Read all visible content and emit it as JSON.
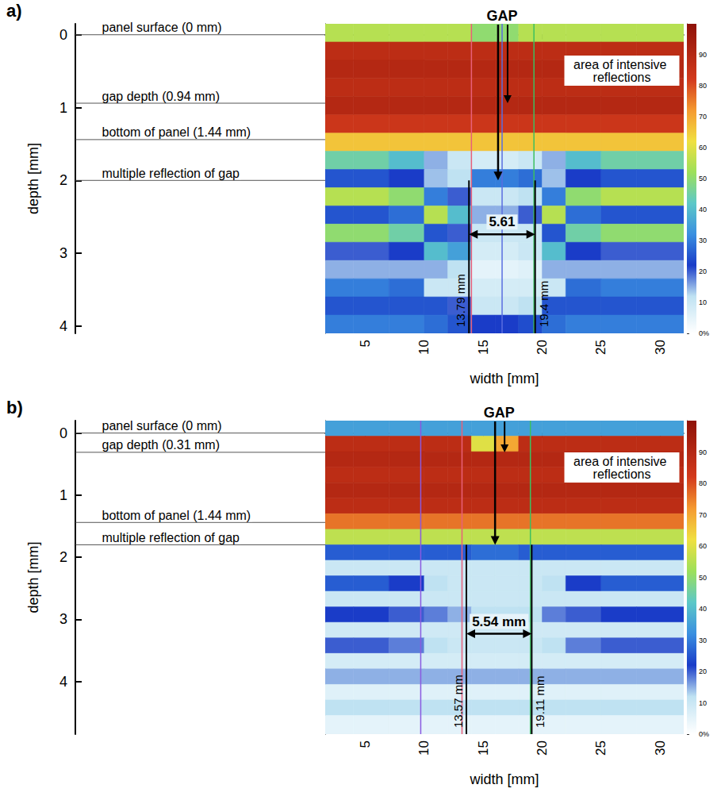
{
  "chart_data": [
    {
      "type": "heatmap",
      "panel": "a)",
      "x_label": "width [mm]",
      "y_label": "depth [mm]",
      "xlim": [
        1.6,
        32
      ],
      "xticks": [
        5,
        10,
        15,
        20,
        25,
        30
      ],
      "ylim": [
        -0.15,
        4.1
      ],
      "yticks": [
        0,
        1,
        2,
        3,
        4
      ],
      "x_edges": [
        1.6,
        4,
        7,
        10,
        12,
        14,
        16,
        18,
        20,
        22,
        25,
        28,
        32
      ],
      "depth_edges": [
        -0.15,
        0.1,
        0.35,
        0.6,
        0.85,
        1.1,
        1.35,
        1.6,
        1.85,
        2.1,
        2.35,
        2.6,
        2.85,
        3.1,
        3.35,
        3.6,
        3.85,
        4.1
      ],
      "amplitude": [
        [
          55,
          55,
          55,
          55,
          55,
          50,
          50,
          55,
          55,
          55,
          55,
          55
        ],
        [
          88,
          88,
          88,
          88,
          88,
          88,
          88,
          88,
          88,
          88,
          88,
          88
        ],
        [
          90,
          90,
          90,
          90,
          90,
          90,
          90,
          90,
          90,
          90,
          90,
          90
        ],
        [
          88,
          88,
          88,
          88,
          88,
          88,
          88,
          88,
          88,
          88,
          88,
          88
        ],
        [
          90,
          90,
          90,
          90,
          90,
          90,
          90,
          90,
          90,
          90,
          90,
          90
        ],
        [
          84,
          84,
          84,
          84,
          84,
          84,
          84,
          84,
          84,
          84,
          84,
          84
        ],
        [
          66,
          66,
          66,
          66,
          66,
          66,
          66,
          66,
          66,
          66,
          66,
          66
        ],
        [
          45,
          45,
          40,
          15,
          10,
          8,
          8,
          10,
          15,
          40,
          45,
          45
        ],
        [
          25,
          25,
          22,
          14,
          12,
          30,
          30,
          28,
          14,
          22,
          25,
          25
        ],
        [
          55,
          55,
          50,
          30,
          20,
          10,
          10,
          12,
          30,
          50,
          55,
          55
        ],
        [
          25,
          25,
          28,
          55,
          40,
          15,
          15,
          20,
          55,
          28,
          25,
          25
        ],
        [
          50,
          50,
          45,
          25,
          20,
          10,
          10,
          10,
          25,
          45,
          50,
          50
        ],
        [
          20,
          20,
          22,
          40,
          35,
          8,
          8,
          10,
          40,
          22,
          20,
          20
        ],
        [
          15,
          15,
          15,
          15,
          12,
          5,
          5,
          6,
          15,
          15,
          15,
          15
        ],
        [
          30,
          30,
          28,
          10,
          10,
          8,
          8,
          8,
          10,
          28,
          30,
          30
        ],
        [
          25,
          25,
          25,
          25,
          20,
          10,
          10,
          12,
          25,
          25,
          25,
          25
        ],
        [
          30,
          30,
          30,
          28,
          25,
          22,
          22,
          24,
          28,
          30,
          30,
          30
        ]
      ],
      "colorbar": {
        "range": [
          0,
          100
        ],
        "ticks": [
          {
            "value": 0,
            "label": "0%"
          },
          10,
          20,
          30,
          40,
          50,
          60,
          70,
          80,
          90
        ]
      },
      "depth_markers": [
        {
          "label": "panel surface (0 mm)",
          "depth": 0
        },
        {
          "label": "gap depth (0.94 mm)",
          "depth": 0.94
        },
        {
          "label": "bottom of panel (1.44 mm)",
          "depth": 1.44
        },
        {
          "label": "multiple reflection of gap",
          "depth": 2.0
        }
      ],
      "gap": {
        "label": "GAP",
        "edges": [
          {
            "value": 13.79,
            "label": "13.79 mm"
          },
          {
            "value": 19.4,
            "label": "19.4 mm"
          }
        ],
        "width": {
          "value": 5.61,
          "label": "5.61"
        }
      },
      "cursors": [
        {
          "x": 14.0,
          "color": "#e8607a"
        },
        {
          "x": 16.6,
          "color": "#5a6de0"
        },
        {
          "x": 19.3,
          "color": "#3cc060"
        }
      ],
      "annotation": "area of intensive reflections"
    },
    {
      "type": "heatmap",
      "panel": "b)",
      "x_label": "width [mm]",
      "y_label": "depth [mm]",
      "xlim": [
        1.6,
        32
      ],
      "xticks": [
        5,
        10,
        15,
        20,
        25,
        30
      ],
      "ylim": [
        -0.2,
        4.85
      ],
      "yticks": [
        0,
        1,
        2,
        3,
        4
      ],
      "x_edges": [
        1.6,
        4,
        7,
        10,
        12,
        14,
        16,
        18,
        20,
        22,
        25,
        28,
        32
      ],
      "depth_edges": [
        -0.2,
        0.05,
        0.3,
        0.55,
        0.8,
        1.05,
        1.3,
        1.55,
        1.8,
        2.05,
        2.3,
        2.55,
        2.8,
        3.05,
        3.3,
        3.55,
        3.8,
        4.05,
        4.3,
        4.55,
        4.85
      ],
      "amplitude": [
        [
          35,
          35,
          35,
          35,
          35,
          35,
          35,
          35,
          35,
          35,
          35,
          35
        ],
        [
          88,
          88,
          88,
          88,
          88,
          60,
          70,
          88,
          88,
          88,
          88,
          88
        ],
        [
          90,
          90,
          90,
          90,
          90,
          90,
          90,
          90,
          90,
          90,
          90,
          90
        ],
        [
          88,
          88,
          88,
          88,
          88,
          88,
          88,
          88,
          88,
          88,
          88,
          88
        ],
        [
          90,
          90,
          90,
          90,
          90,
          90,
          90,
          90,
          90,
          90,
          90,
          90
        ],
        [
          88,
          88,
          88,
          88,
          88,
          88,
          88,
          88,
          88,
          88,
          88,
          88
        ],
        [
          76,
          76,
          76,
          76,
          76,
          76,
          76,
          76,
          76,
          76,
          76,
          76
        ],
        [
          56,
          56,
          56,
          56,
          56,
          56,
          56,
          56,
          56,
          56,
          56,
          56
        ],
        [
          26,
          26,
          26,
          26,
          26,
          28,
          28,
          26,
          26,
          26,
          26,
          26
        ],
        [
          10,
          10,
          10,
          10,
          10,
          10,
          10,
          10,
          10,
          10,
          10,
          10
        ],
        [
          26,
          26,
          22,
          12,
          10,
          10,
          10,
          10,
          12,
          22,
          26,
          26
        ],
        [
          10,
          10,
          10,
          10,
          10,
          10,
          10,
          10,
          10,
          10,
          10,
          10
        ],
        [
          22,
          22,
          20,
          18,
          15,
          12,
          12,
          12,
          18,
          20,
          22,
          22
        ],
        [
          9,
          9,
          9,
          9,
          9,
          9,
          9,
          9,
          9,
          9,
          9,
          9
        ],
        [
          20,
          20,
          18,
          12,
          10,
          10,
          10,
          10,
          12,
          18,
          20,
          20
        ],
        [
          8,
          8,
          8,
          8,
          8,
          8,
          8,
          8,
          8,
          8,
          8,
          8
        ],
        [
          15,
          15,
          15,
          15,
          15,
          15,
          15,
          15,
          15,
          15,
          15,
          15
        ],
        [
          6,
          6,
          6,
          6,
          6,
          6,
          6,
          6,
          6,
          6,
          6,
          6
        ],
        [
          12,
          12,
          12,
          12,
          12,
          12,
          12,
          12,
          12,
          12,
          12,
          12
        ],
        [
          5,
          5,
          5,
          5,
          5,
          5,
          5,
          5,
          5,
          5,
          5,
          5
        ]
      ],
      "colorbar": {
        "range": [
          0,
          100
        ],
        "ticks": [
          {
            "value": 0,
            "label": "0%"
          },
          10,
          20,
          30,
          40,
          50,
          60,
          70,
          80,
          90
        ]
      },
      "depth_markers": [
        {
          "label": "panel surface (0 mm)",
          "depth": 0
        },
        {
          "label": "gap depth (0.31 mm)",
          "depth": 0.31
        },
        {
          "label": "bottom of panel (1.44 mm)",
          "depth": 1.44
        },
        {
          "label": "multiple reflection of gap",
          "depth": 1.8
        }
      ],
      "gap": {
        "label": "GAP",
        "edges": [
          {
            "value": 13.57,
            "label": "13.57 mm"
          },
          {
            "value": 19.11,
            "label": "19.11 mm"
          }
        ],
        "width": {
          "value": 5.54,
          "label": "5.54 mm"
        }
      },
      "cursors": [
        {
          "x": 9.7,
          "color": "#8a5ae0"
        },
        {
          "x": 13.2,
          "color": "#e8607a"
        },
        {
          "x": 19.0,
          "color": "#3cc060"
        }
      ],
      "annotation": "area of intensive reflections"
    }
  ]
}
